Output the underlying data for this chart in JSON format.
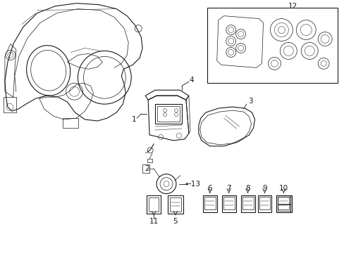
{
  "background_color": "#ffffff",
  "line_color": "#1a1a1a",
  "fig_width": 4.89,
  "fig_height": 3.6,
  "dpi": 100,
  "label_fontsize": 7.5,
  "lw_main": 0.8,
  "lw_detail": 0.5,
  "lw_thin": 0.35
}
